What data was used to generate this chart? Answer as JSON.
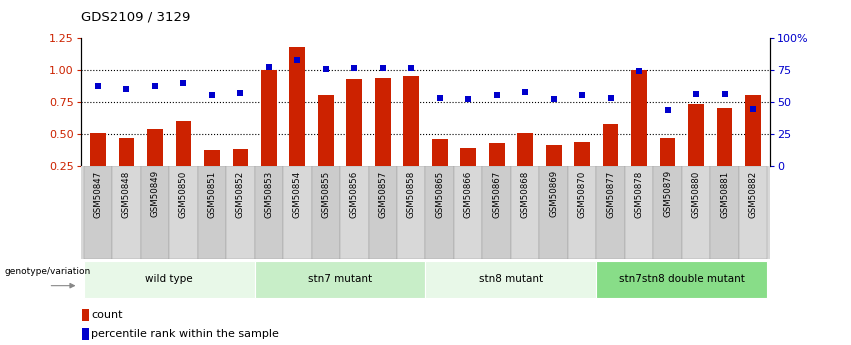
{
  "title": "GDS2109 / 3129",
  "samples": [
    "GSM50847",
    "GSM50848",
    "GSM50849",
    "GSM50850",
    "GSM50851",
    "GSM50852",
    "GSM50853",
    "GSM50854",
    "GSM50855",
    "GSM50856",
    "GSM50857",
    "GSM50858",
    "GSM50865",
    "GSM50866",
    "GSM50867",
    "GSM50868",
    "GSM50869",
    "GSM50870",
    "GSM50877",
    "GSM50878",
    "GSM50879",
    "GSM50880",
    "GSM50881",
    "GSM50882"
  ],
  "counts": [
    0.505,
    0.47,
    0.54,
    0.6,
    0.37,
    0.38,
    1.0,
    1.18,
    0.8,
    0.93,
    0.935,
    0.95,
    0.46,
    0.385,
    0.43,
    0.505,
    0.415,
    0.435,
    0.575,
    1.0,
    0.47,
    0.73,
    0.705,
    0.8
  ],
  "percentiles": [
    0.875,
    0.85,
    0.875,
    0.895,
    0.8,
    0.815,
    1.025,
    1.075,
    1.005,
    1.015,
    1.015,
    1.015,
    0.78,
    0.77,
    0.8,
    0.825,
    0.77,
    0.8,
    0.78,
    0.995,
    0.685,
    0.81,
    0.81,
    0.695
  ],
  "groups": [
    {
      "label": "wild type",
      "start": 0,
      "end": 6
    },
    {
      "label": "stn7 mutant",
      "start": 6,
      "end": 12
    },
    {
      "label": "stn8 mutant",
      "start": 12,
      "end": 18
    },
    {
      "label": "stn7stn8 double mutant",
      "start": 18,
      "end": 24
    }
  ],
  "group_colors": [
    "#e8f8e8",
    "#c8eec8",
    "#e8f8e8",
    "#88dd88"
  ],
  "bar_color": "#cc2200",
  "dot_color": "#0000cc",
  "ylim_left": [
    0.25,
    1.25
  ],
  "yticks_left": [
    0.25,
    0.5,
    0.75,
    1.0,
    1.25
  ],
  "ytick_labels_right": [
    "0",
    "25",
    "50",
    "75",
    "100%"
  ],
  "ytick_vals_right": [
    0,
    25,
    50,
    75,
    100
  ],
  "hlines": [
    0.5,
    0.75,
    1.0
  ],
  "legend_count": "count",
  "legend_pct": "percentile rank within the sample"
}
